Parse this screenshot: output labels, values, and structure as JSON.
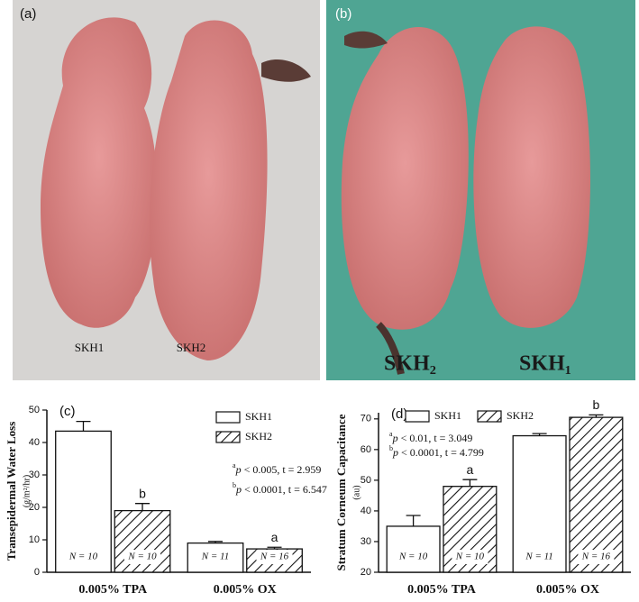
{
  "photos": [
    {
      "label": "(a)",
      "captions": [
        "SKH1",
        "SKH2"
      ]
    },
    {
      "label": "(b)",
      "captions": [
        "SKH₂",
        "SKH₁"
      ]
    }
  ],
  "chart_data": [
    {
      "type": "bar",
      "panel": "(c)",
      "ylabel": "Transepidermal Water Loss",
      "yunit": "(g/m²/hr)",
      "categories": [
        "0.005% TPA",
        "0.005% OX"
      ],
      "series": [
        {
          "name": "SKH1",
          "color": "#ffffff",
          "hatch": false,
          "values": [
            43.5,
            9
          ],
          "errors": [
            3,
            0.5
          ],
          "n_labels": [
            "N = 10",
            "N = 11"
          ]
        },
        {
          "name": "SKH2",
          "color": "#ffffff",
          "hatch": true,
          "values": [
            19,
            7.2
          ],
          "errors": [
            2.2,
            0.5
          ],
          "n_labels": [
            "N = 10",
            "N = 16"
          ],
          "letters": [
            "b",
            "a"
          ]
        }
      ],
      "stats": [
        {
          "sup": "a",
          "p": "p",
          "rest": " < 0.005, t = 2.959"
        },
        {
          "sup": "b",
          "p": "p",
          "rest": " < 0.0001, t = 6.547"
        }
      ],
      "ylim": [
        0,
        50
      ],
      "yticks": [
        0,
        10,
        20,
        30,
        40,
        50
      ],
      "legend": "top-right-vertical"
    },
    {
      "type": "bar",
      "panel": "(d)",
      "ylabel": "Stratum Corneum Capacitance",
      "yunit": "(au)",
      "categories": [
        "0.005% TPA",
        "0.005% OX"
      ],
      "series": [
        {
          "name": "SKH1",
          "color": "#ffffff",
          "hatch": false,
          "values": [
            35,
            64.5
          ],
          "errors": [
            3.5,
            0.7
          ],
          "n_labels": [
            "N = 10",
            "N = 11"
          ]
        },
        {
          "name": "SKH2",
          "color": "#ffffff",
          "hatch": true,
          "values": [
            48,
            70.5
          ],
          "errors": [
            2.2,
            0.8
          ],
          "n_labels": [
            "N = 10",
            "N = 16"
          ],
          "letters": [
            "a",
            "b"
          ]
        }
      ],
      "stats": [
        {
          "sup": "a",
          "p": "p",
          "rest": " < 0.01, t = 3.049"
        },
        {
          "sup": "b",
          "p": "p",
          "rest": " < 0.0001, t = 4.799"
        }
      ],
      "ylim": [
        20,
        72
      ],
      "yticks": [
        20,
        30,
        40,
        50,
        60,
        70
      ],
      "legend": "top-left-horizontal"
    }
  ]
}
